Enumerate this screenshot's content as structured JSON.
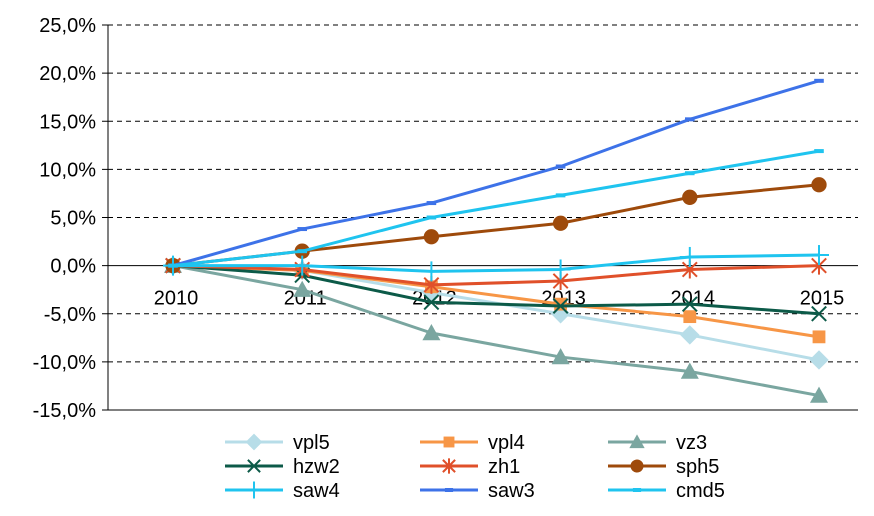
{
  "chart_data": {
    "type": "line",
    "title": "",
    "xlabel": "",
    "ylabel": "",
    "categories": [
      "2010",
      "2011",
      "2012",
      "2013",
      "2014",
      "2015"
    ],
    "ylim": [
      -15,
      25
    ],
    "y_ticks": [
      25,
      20,
      15,
      10,
      5,
      0,
      -5,
      -10,
      -15
    ],
    "y_tick_labels": [
      "25,0%",
      "20,0%",
      "15,0%",
      "10,0%",
      "5,0%",
      "0,0%",
      "-5,0%",
      "-10,0%",
      "-15,0%"
    ],
    "grid": "horizontal dashed",
    "legend_position": "bottom",
    "series": [
      {
        "name": "vpl5",
        "color": "#b7dde8",
        "marker": "diamond",
        "values": [
          0,
          -0.5,
          -2.8,
          -5.0,
          -7.2,
          -9.8
        ]
      },
      {
        "name": "vpl4",
        "color": "#f79646",
        "marker": "square",
        "values": [
          0,
          -0.5,
          -2.2,
          -4.0,
          -5.3,
          -7.4
        ]
      },
      {
        "name": "vz3",
        "color": "#7aa6a0",
        "marker": "triangle",
        "values": [
          0,
          -2.5,
          -7.0,
          -9.5,
          -11.0,
          -13.5
        ]
      },
      {
        "name": "hzw2",
        "color": "#0c5a48",
        "marker": "x",
        "values": [
          0,
          -1.0,
          -3.8,
          -4.2,
          -4.0,
          -5.0
        ]
      },
      {
        "name": "zh1",
        "color": "#e0502a",
        "marker": "asterisk",
        "values": [
          0,
          -0.4,
          -2.0,
          -1.6,
          -0.4,
          0.0
        ]
      },
      {
        "name": "sph5",
        "color": "#9e4a0b",
        "marker": "circle",
        "values": [
          0,
          1.5,
          3.0,
          4.4,
          7.1,
          8.4
        ]
      },
      {
        "name": "saw4",
        "color": "#1fc4ef",
        "marker": "plus",
        "values": [
          0,
          0.0,
          -0.6,
          -0.4,
          0.9,
          1.1
        ]
      },
      {
        "name": "saw3",
        "color": "#3d72e8",
        "marker": "dash",
        "values": [
          0,
          3.8,
          6.5,
          10.3,
          15.2,
          19.2
        ]
      },
      {
        "name": "cmd5",
        "color": "#1fc4ef",
        "marker": "dash",
        "values": [
          0,
          1.5,
          5.0,
          7.3,
          9.6,
          11.9
        ]
      }
    ]
  }
}
